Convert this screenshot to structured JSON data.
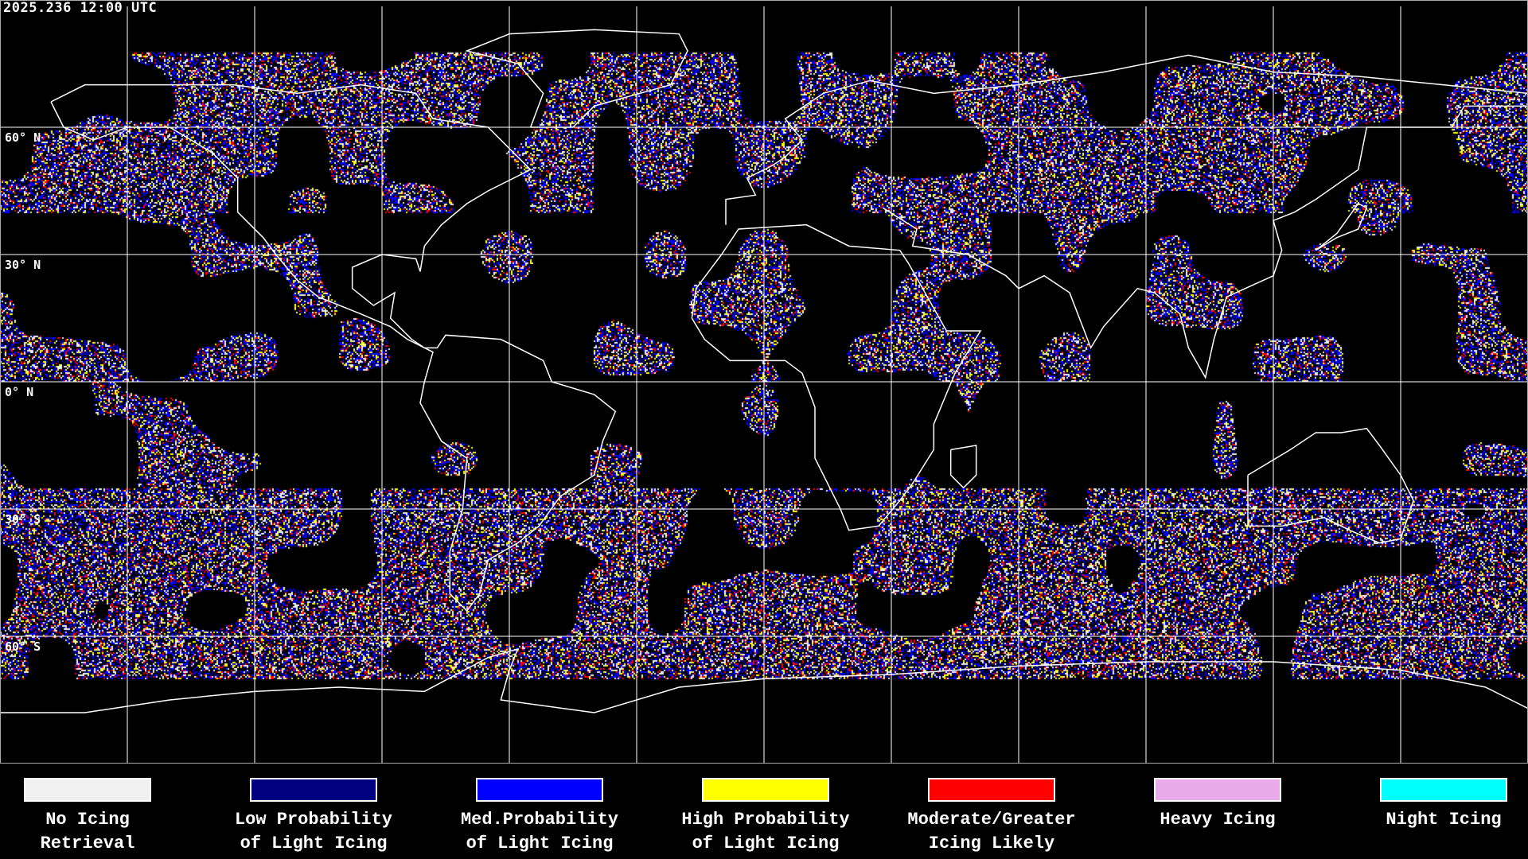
{
  "header": {
    "timestamp": "2025.236 12:00 UTC"
  },
  "map": {
    "projection": "equirectangular",
    "grid_spacing_deg": 30,
    "lat_labels": [
      "60° N",
      "30° N",
      "0° N",
      "30° S",
      "60° S"
    ],
    "background": "#000000",
    "coastline_color": "#ffffff",
    "grid_color": "#ffffff"
  },
  "legend": {
    "items": [
      {
        "line1": "No Icing",
        "line2": "Retrieval",
        "color": "#f0f0f0"
      },
      {
        "line1": "Low Probability",
        "line2": "of Light Icing",
        "color": "#000080"
      },
      {
        "line1": "Med.Probability",
        "line2": "of Light Icing",
        "color": "#0000ff"
      },
      {
        "line1": "High Probability",
        "line2": "of Light Icing",
        "color": "#ffff00"
      },
      {
        "line1": "Moderate/Greater",
        "line2": "Icing Likely",
        "color": "#ff0000"
      },
      {
        "line1": "Heavy Icing",
        "line2": "",
        "color": "#e8aae8"
      },
      {
        "line1": "Night Icing",
        "line2": "",
        "color": "#00ffff"
      }
    ]
  }
}
